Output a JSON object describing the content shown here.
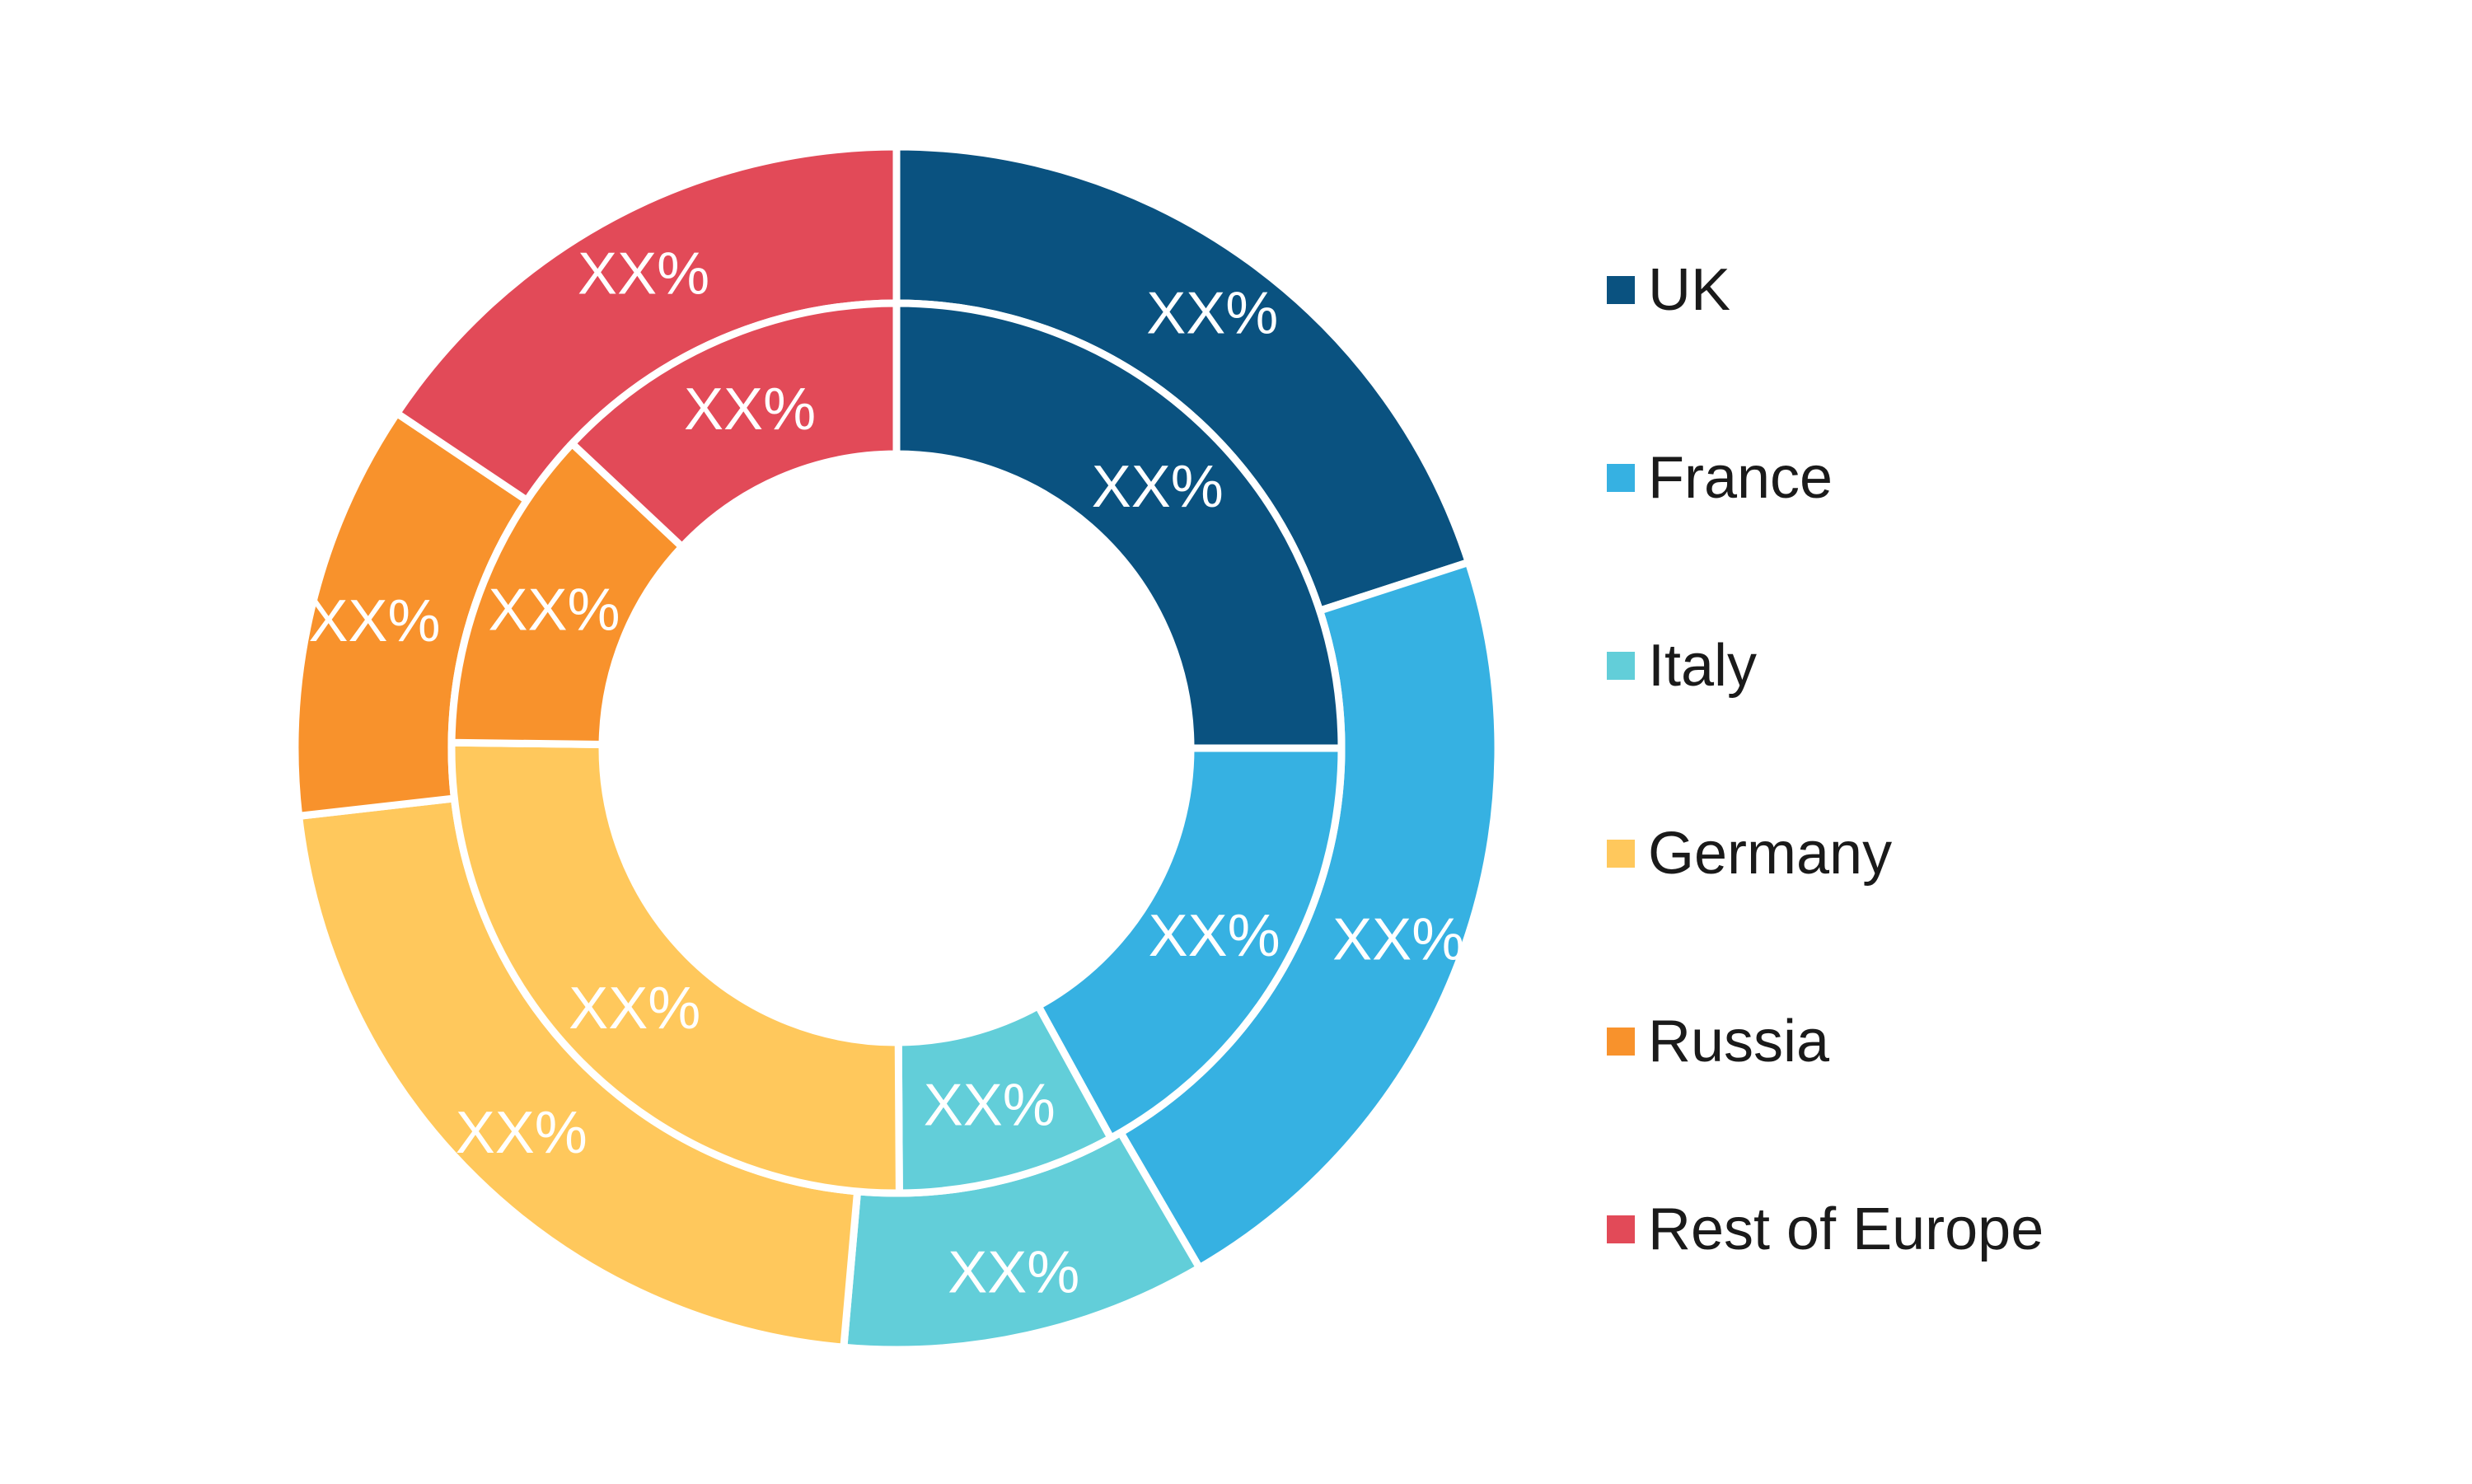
{
  "chart_data": {
    "type": "pie",
    "variant": "double-donut",
    "categories": [
      "UK",
      "France",
      "Italy",
      "Germany",
      "Russia",
      "Rest of Europe"
    ],
    "colors": {
      "UK": "#0a5280",
      "France": "#36b1e2",
      "Italy": "#62ced9",
      "Germany": "#ffc85c",
      "Russia": "#f8922c",
      "Rest of Europe": "#e24a58"
    },
    "series": [
      {
        "ring": "outer",
        "values": [
          20.0,
          21.6,
          9.8,
          21.8,
          11.2,
          15.6
        ],
        "labels": [
          "XX%",
          "XX%",
          "XX%",
          "XX%",
          "XX%",
          "XX%"
        ]
      },
      {
        "ring": "inner",
        "values": [
          25.0,
          17.0,
          7.9,
          25.3,
          11.8,
          13.0
        ],
        "labels": [
          "XX%",
          "XX%",
          "XX%",
          "XX%",
          "XX%",
          "XX%"
        ]
      }
    ],
    "legend": {
      "position": "right",
      "entries": [
        "UK",
        "France",
        "Italy",
        "Germany",
        "Russia",
        "Rest of Europe"
      ]
    }
  }
}
